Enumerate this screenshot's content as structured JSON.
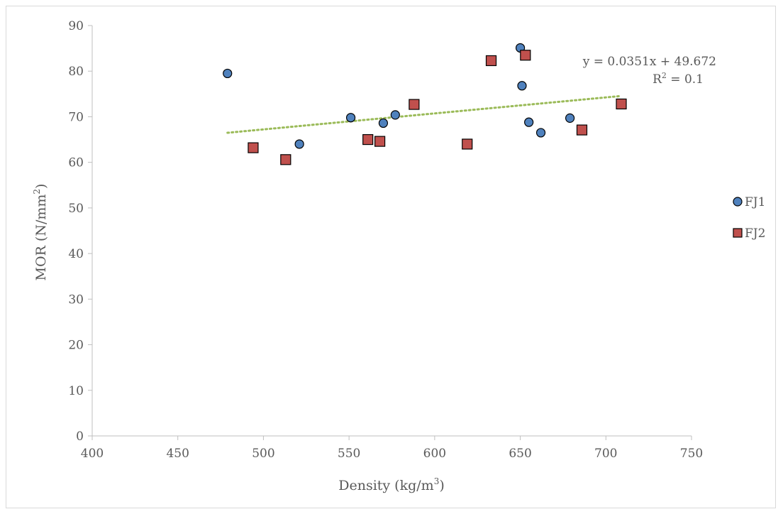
{
  "chart_data": {
    "type": "scatter",
    "xlabel": "Density (kg/m",
    "xlabel_sup": "3",
    "xlabel_end": ")",
    "ylabel": "MOR (N/mm",
    "ylabel_sup": "2",
    "ylabel_end": ")",
    "xlim": [
      400,
      750
    ],
    "ylim": [
      0,
      90
    ],
    "x_ticks": [
      400,
      450,
      500,
      550,
      600,
      650,
      700,
      750
    ],
    "y_ticks": [
      0,
      10,
      20,
      30,
      40,
      50,
      60,
      70,
      80,
      90
    ],
    "grid": false,
    "legend_position": "right",
    "series": [
      {
        "name": "FJ1",
        "marker": "circle",
        "color": "#4f81bd",
        "x": [
          479,
          521,
          551,
          570,
          577,
          650,
          651,
          655,
          662,
          679
        ],
        "y": [
          79.5,
          64.0,
          69.8,
          68.6,
          70.4,
          85.1,
          76.8,
          68.8,
          66.5,
          69.7
        ]
      },
      {
        "name": "FJ2",
        "marker": "square",
        "color": "#c0504d",
        "x": [
          494,
          513,
          561,
          568,
          588,
          619,
          633,
          653,
          686,
          709
        ],
        "y": [
          63.2,
          60.6,
          65.0,
          64.6,
          72.7,
          64.0,
          82.3,
          83.5,
          67.1,
          72.8
        ]
      }
    ],
    "trendline": {
      "color": "#9bbb59",
      "slope": 0.0351,
      "intercept": 49.672,
      "x_range": [
        479,
        709
      ],
      "equation": "y = 0.0351x + 49.672",
      "r2_prefix": "R",
      "r2_sup": "2",
      "r2_suffix": " = 0.1"
    }
  }
}
